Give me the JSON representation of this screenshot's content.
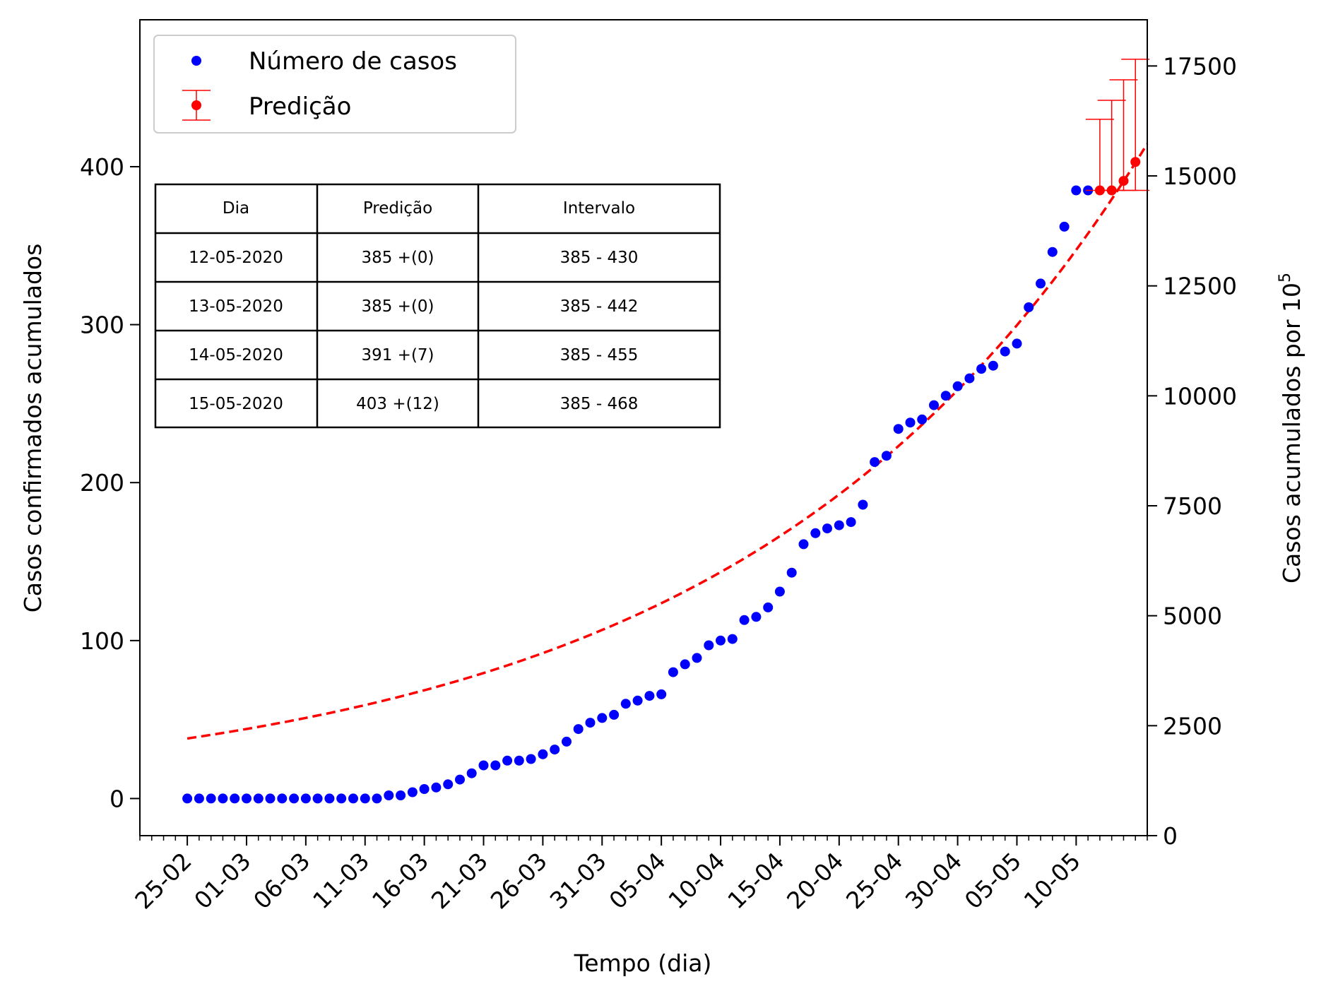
{
  "chart_data": {
    "type": "scatter",
    "xlabel": "Tempo (dia)",
    "ylabel": "Casos confirmados acumulados",
    "ylabel_right": "Casos acumulados por 10",
    "ylabel_right_exponent": "5",
    "xlim": [
      -4,
      81
    ],
    "ylim": [
      -23.5,
      493
    ],
    "ylim_right": [
      0,
      18550
    ],
    "y_ticks": [
      "0",
      "100",
      "200",
      "300",
      "400"
    ],
    "y_tick_values": [
      0,
      100,
      200,
      300,
      400
    ],
    "y_right_ticks": [
      "0",
      "2500",
      "5000",
      "7500",
      "10000",
      "12500",
      "15000",
      "17500"
    ],
    "y_right_tick_values": [
      0,
      2500,
      5000,
      7500,
      10000,
      12500,
      15000,
      17500
    ],
    "x_ticks": [
      "25-02",
      "01-03",
      "06-03",
      "11-03",
      "16-03",
      "21-03",
      "26-03",
      "31-03",
      "05-04",
      "10-04",
      "15-04",
      "20-04",
      "25-04",
      "30-04",
      "05-05",
      "10-05"
    ],
    "x_tick_values": [
      0,
      5,
      10,
      15,
      20,
      25,
      30,
      35,
      40,
      45,
      50,
      55,
      60,
      65,
      70,
      75
    ],
    "legend": {
      "position": "upper-left",
      "entries": [
        "Número de casos",
        "Predição"
      ]
    },
    "grid": false,
    "colors": {
      "cases": "#0000ff",
      "prediction": "#ff0000"
    },
    "series": [
      {
        "name": "Número de casos",
        "type": "scatter",
        "x": [
          0,
          1,
          2,
          3,
          4,
          5,
          6,
          7,
          8,
          9,
          10,
          11,
          12,
          13,
          14,
          15,
          16,
          17,
          18,
          19,
          20,
          21,
          22,
          23,
          24,
          25,
          26,
          27,
          28,
          29,
          30,
          31,
          32,
          33,
          34,
          35,
          36,
          37,
          38,
          39,
          40,
          41,
          42,
          43,
          44,
          45,
          46,
          47,
          48,
          49,
          50,
          51,
          52,
          53,
          54,
          55,
          56,
          57,
          58,
          59,
          60,
          61,
          62,
          63,
          64,
          65,
          66,
          67,
          68,
          69,
          70,
          71,
          72,
          73,
          74,
          75,
          76
        ],
        "y": [
          0,
          0,
          0,
          0,
          0,
          0,
          0,
          0,
          0,
          0,
          0,
          0,
          0,
          0,
          0,
          0,
          0,
          2,
          2,
          4,
          6,
          7,
          9,
          12,
          16,
          21,
          21,
          24,
          24,
          25,
          28,
          31,
          36,
          44,
          48,
          51,
          53,
          60,
          62,
          65,
          66,
          80,
          85,
          89,
          97,
          100,
          101,
          113,
          115,
          121,
          131,
          143,
          161,
          168,
          171,
          173,
          175,
          186,
          213,
          217,
          234,
          238,
          240,
          249,
          255,
          261,
          266,
          272,
          274,
          283,
          288,
          311,
          326,
          346,
          362,
          385,
          385
        ]
      },
      {
        "name": "Predição",
        "type": "errorbar",
        "x": [
          77,
          78,
          79,
          80
        ],
        "y": [
          385,
          385,
          391,
          403
        ],
        "lower": [
          385,
          385,
          385,
          385
        ],
        "upper": [
          430,
          442,
          455,
          468
        ]
      },
      {
        "name": "fit",
        "type": "line",
        "style": "dashed",
        "x_range": [
          0,
          81
        ],
        "formula_y0": 38,
        "formula_growth": 0.0295
      }
    ],
    "table": {
      "headers": [
        "Dia",
        "Predição",
        "Intervalo"
      ],
      "rows": [
        [
          "12-05-2020",
          "385 +(0)",
          "385 - 430"
        ],
        [
          "13-05-2020",
          "385 +(0)",
          "385 - 442"
        ],
        [
          "14-05-2020",
          "391 +(7)",
          "385 - 455"
        ],
        [
          "15-05-2020",
          "403 +(12)",
          "385 - 468"
        ]
      ]
    }
  }
}
